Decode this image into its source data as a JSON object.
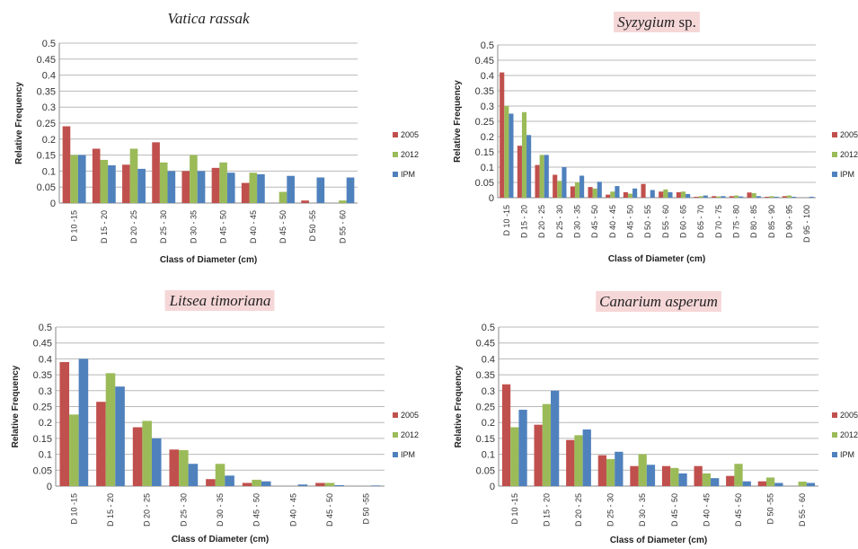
{
  "legend_labels": [
    "2005",
    "2012",
    "IPM"
  ],
  "colors": {
    "2005": "#c0504d",
    "2012": "#9bbb59",
    "IPM": "#4f81bd",
    "title_highlight": "#f6d7d8",
    "gridline": "#b8b8b8"
  },
  "chart_data": [
    {
      "type": "bar",
      "title": "Vatica rassak",
      "title_italic": "Vatica rassak",
      "title_plain": "",
      "title_highlighted": false,
      "xlabel": "Class of Diameter (cm)",
      "ylabel": "Relative Frequency",
      "ylim": [
        0,
        0.5
      ],
      "yticks": [
        "0",
        "0.05",
        "0.1",
        "0.15",
        "0.2",
        "0.25",
        "0.3",
        "0.35",
        "0.4",
        "0.45",
        "0.5"
      ],
      "grid": true,
      "legend_position": "right",
      "categories": [
        "D 10 -15",
        "D 15 - 20",
        "D 20 - 25",
        "D 25 - 30",
        "D 30 - 35",
        "D 45 - 50",
        "D 40 - 45",
        "D 45 - 50",
        "D 50 -55",
        "D 55 - 60"
      ],
      "series": [
        {
          "name": "2005",
          "values": [
            0.24,
            0.17,
            0.12,
            0.19,
            0.1,
            0.11,
            0.063,
            0,
            0.008,
            0
          ]
        },
        {
          "name": "2012",
          "values": [
            0.15,
            0.135,
            0.17,
            0.127,
            0.15,
            0.127,
            0.095,
            0.035,
            0,
            0.008
          ]
        },
        {
          "name": "IPM",
          "values": [
            0.15,
            0.118,
            0.107,
            0.1,
            0.1,
            0.095,
            0.09,
            0.085,
            0.08,
            0.08
          ]
        }
      ]
    },
    {
      "type": "bar",
      "title": "Syzygium sp.",
      "title_italic": "Syzygium",
      "title_plain": " sp.",
      "title_highlighted": true,
      "xlabel": "Class of Diameter (cm)",
      "ylabel": "Relative Frequency",
      "ylim": [
        0,
        0.5
      ],
      "yticks": [
        "0",
        "0.05",
        "0.1",
        "0.15",
        "0.2",
        "0.25",
        "0.3",
        "0.35",
        "0.4",
        "0.45",
        "0.5"
      ],
      "grid": true,
      "legend_position": "right",
      "categories": [
        "D 10 -15",
        "D 15 - 20",
        "D 20 - 25",
        "D 25 - 30",
        "D 30 - 35",
        "D 45 - 50",
        "D 40 - 45",
        "D 45 - 50",
        "D 50 - 55",
        "D 55 - 60",
        "D 60 - 65",
        "D 65 - 70",
        "D 70 - 75",
        "D 75 - 80",
        "D 80 - 85",
        "D 85 - 90",
        "D 90 - 95",
        "D 95 - 100"
      ],
      "series": [
        {
          "name": "2005",
          "values": [
            0.41,
            0.17,
            0.107,
            0.075,
            0.037,
            0.035,
            0.01,
            0.018,
            0.045,
            0.02,
            0.018,
            0.003,
            0.005,
            0.005,
            0.017,
            0.003,
            0.005,
            0
          ]
        },
        {
          "name": "2012",
          "values": [
            0.3,
            0.28,
            0.14,
            0.055,
            0.05,
            0.03,
            0.02,
            0.013,
            0,
            0.027,
            0.02,
            0.005,
            0.004,
            0.007,
            0.015,
            0.005,
            0.007,
            0
          ]
        },
        {
          "name": "IPM",
          "values": [
            0.275,
            0.205,
            0.14,
            0.1,
            0.072,
            0.052,
            0.038,
            0.03,
            0.025,
            0.018,
            0.012,
            0.007,
            0.005,
            0.004,
            0.005,
            0.003,
            0.003,
            0.003
          ]
        }
      ]
    },
    {
      "type": "bar",
      "title": "Litsea timoriana",
      "title_italic": "Litsea timoriana",
      "title_plain": "",
      "title_highlighted": true,
      "xlabel": "Class of Diameter (cm)",
      "ylabel": "Relative Frequency",
      "ylim": [
        0,
        0.5
      ],
      "yticks": [
        "0",
        "0.05",
        "0.1",
        "0.15",
        "0.2",
        "0.25",
        "0.3",
        "0.35",
        "0.4",
        "0.45",
        "0.5"
      ],
      "grid": true,
      "legend_position": "right",
      "categories": [
        "D 10 -15",
        "D 15 - 20",
        "D 20 - 25",
        "D 25 - 30",
        "D 30 - 35",
        "D 45 - 50",
        "D 40 - 45",
        "D 45 - 50",
        "D 50 -55"
      ],
      "series": [
        {
          "name": "2005",
          "values": [
            0.39,
            0.265,
            0.185,
            0.115,
            0.022,
            0.01,
            0,
            0.01,
            0
          ]
        },
        {
          "name": "2012",
          "values": [
            0.225,
            0.355,
            0.205,
            0.113,
            0.07,
            0.02,
            0,
            0.01,
            0
          ]
        },
        {
          "name": "IPM",
          "values": [
            0.4,
            0.313,
            0.15,
            0.07,
            0.033,
            0.015,
            0.005,
            0.003,
            0.002
          ]
        }
      ]
    },
    {
      "type": "bar",
      "title": "Canarium asperum",
      "title_italic": "Canarium asperum",
      "title_plain": "",
      "title_highlighted": true,
      "xlabel": "Class of Diameter (cm)",
      "ylabel": "Relative Frequency",
      "ylim": [
        0,
        0.5
      ],
      "yticks": [
        "0",
        "0.05",
        "0.1",
        "0.15",
        "0.2",
        "0.25",
        "0.3",
        "0.35",
        "0.4",
        "0.45",
        "0.5"
      ],
      "grid": true,
      "legend_position": "right",
      "categories": [
        "D 10 -15",
        "D 15 - 20",
        "D 20 - 25",
        "D 25 - 30",
        "D 30 - 35",
        "D 45 - 50",
        "D 40 - 45",
        "D 45 - 50",
        "D 50 -55",
        "D 55 - 60"
      ],
      "series": [
        {
          "name": "2005",
          "values": [
            0.32,
            0.193,
            0.145,
            0.097,
            0.063,
            0.063,
            0.063,
            0.032,
            0.015,
            0
          ]
        },
        {
          "name": "2012",
          "values": [
            0.185,
            0.258,
            0.16,
            0.085,
            0.1,
            0.057,
            0.04,
            0.07,
            0.027,
            0.014
          ]
        },
        {
          "name": "IPM",
          "values": [
            0.24,
            0.3,
            0.178,
            0.108,
            0.067,
            0.04,
            0.025,
            0.015,
            0.01,
            0.01
          ]
        }
      ]
    }
  ]
}
